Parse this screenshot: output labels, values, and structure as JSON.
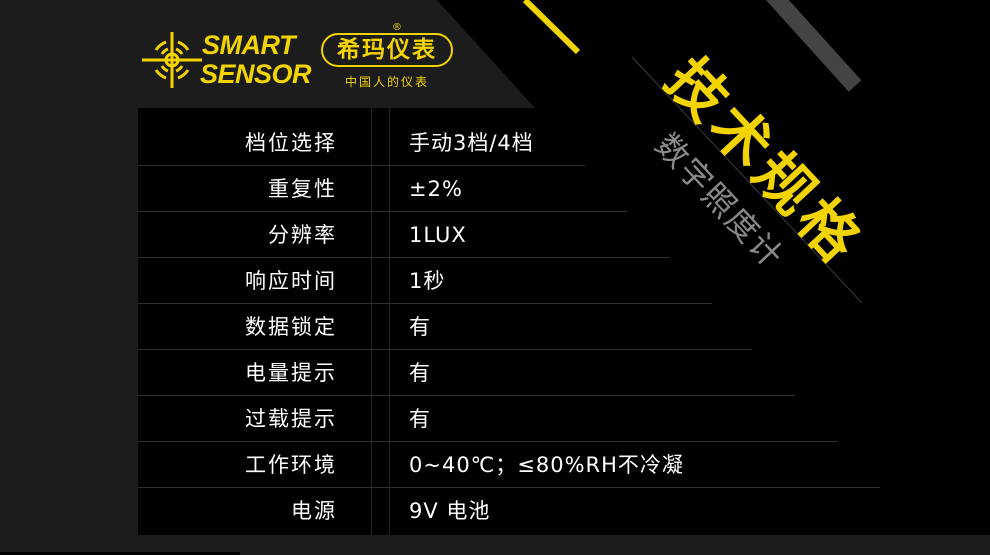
{
  "colors": {
    "accent": "#f3d400",
    "panel": "#1c1c1c",
    "background": "#000000",
    "subtitle": "#8a8a8a"
  },
  "logo": {
    "brand_en_line1": "SMART",
    "brand_en_line2": "SENSOR",
    "brand_cn": "希玛仪表",
    "slogan": "中国人的仪表",
    "registered": "®",
    "icon": "crosshair-icon"
  },
  "title": "技术规格",
  "subtitle": "数字照度计",
  "specs": [
    {
      "label": "档位选择",
      "value": "手动3档/4档"
    },
    {
      "label": "重复性",
      "value": "±2%"
    },
    {
      "label": "分辨率",
      "value": "1LUX"
    },
    {
      "label": "响应时间",
      "value": "1秒"
    },
    {
      "label": "数据锁定",
      "value": "有"
    },
    {
      "label": "电量提示",
      "value": "有"
    },
    {
      "label": "过载提示",
      "value": "有"
    },
    {
      "label": "工作环境",
      "value": "0~40℃；≤80%RH不冷凝"
    },
    {
      "label": "电源",
      "value": "9V 电池"
    }
  ]
}
